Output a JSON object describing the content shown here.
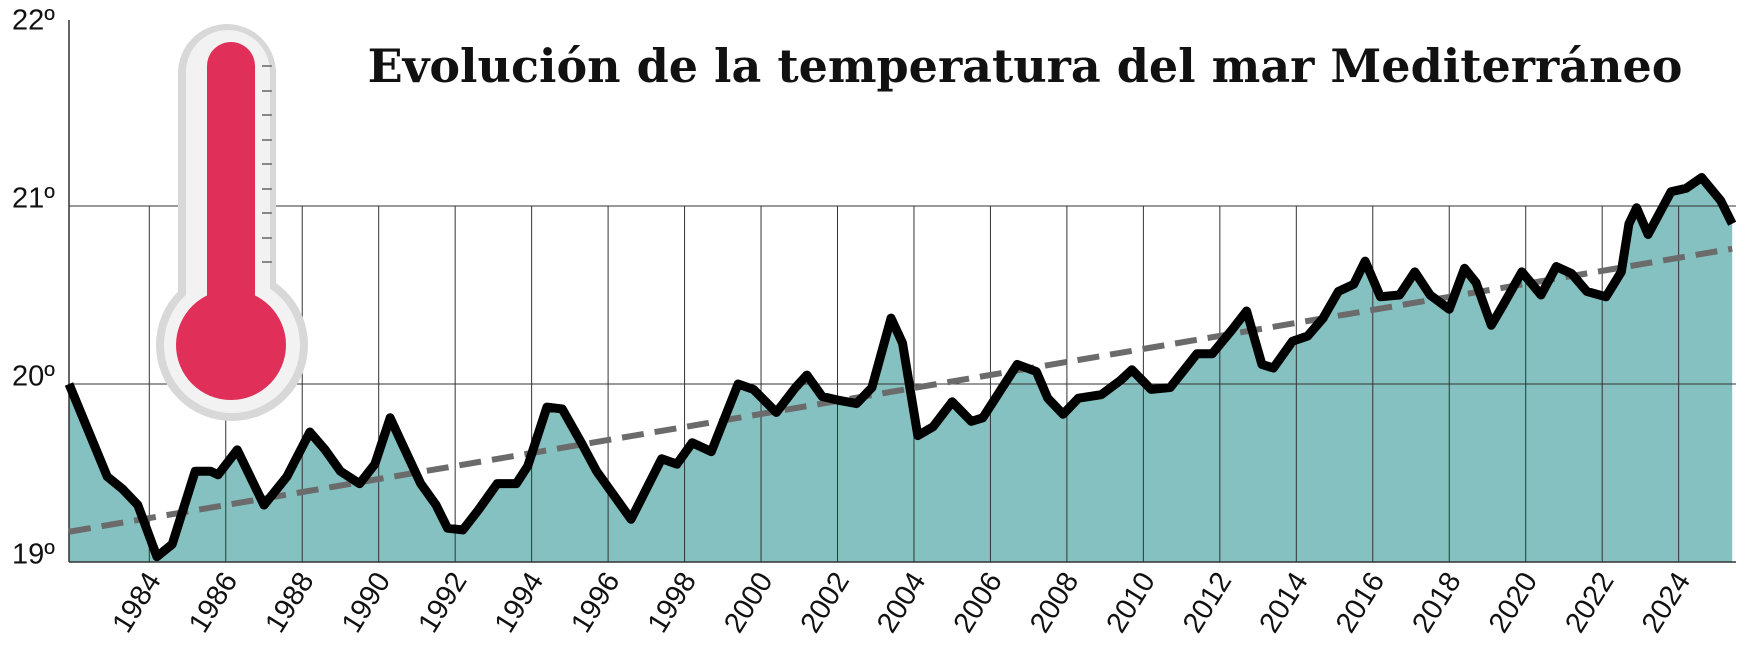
{
  "chart_data": {
    "type": "line",
    "title": "Evolución de la temperatura del mar Mediterráneo",
    "xlim": [
      1981.9,
      2025.5
    ],
    "ylim": [
      19,
      22
    ],
    "xticks": [
      1984,
      1986,
      1988,
      1990,
      1992,
      1994,
      1996,
      1998,
      2000,
      2002,
      2004,
      2006,
      2008,
      2010,
      2012,
      2014,
      2016,
      2018,
      2020,
      2022,
      2024
    ],
    "yticks": [
      {
        "value": 19,
        "label": "19º"
      },
      {
        "value": 20,
        "label": "20º"
      },
      {
        "value": 21,
        "label": "21º"
      },
      {
        "value": 22,
        "label": "22º"
      }
    ],
    "grid": true,
    "color": "#000000",
    "area_color": "#84c1c0",
    "x": [
      1981.9,
      1982.9,
      1983.3,
      1983.7,
      1984.2,
      1984.6,
      1985.2,
      1985.6,
      1985.8,
      1986.3,
      1987.0,
      1987.6,
      1988.2,
      1988.6,
      1989.0,
      1989.5,
      1989.9,
      1990.3,
      1990.6,
      1991.1,
      1991.5,
      1991.8,
      1992.2,
      1992.6,
      1993.1,
      1993.6,
      1993.9,
      1994.4,
      1994.8,
      1995.3,
      1995.7,
      1996.1,
      1996.6,
      1997.4,
      1997.8,
      1998.2,
      1998.7,
      1999.4,
      1999.8,
      2000.4,
      2000.9,
      2001.2,
      2001.6,
      2002.0,
      2002.5,
      2002.9,
      2003.4,
      2003.7,
      2004.1,
      2004.5,
      2005.0,
      2005.5,
      2005.8,
      2006.7,
      2007.2,
      2007.5,
      2007.9,
      2008.3,
      2008.9,
      2009.4,
      2009.7,
      2010.2,
      2010.7,
      2011.4,
      2011.8,
      2012.3,
      2012.7,
      2013.1,
      2013.4,
      2013.9,
      2014.3,
      2014.7,
      2015.1,
      2015.5,
      2015.8,
      2016.2,
      2016.7,
      2017.1,
      2017.5,
      2018.0,
      2018.4,
      2018.7,
      2019.1,
      2019.4,
      2019.9,
      2020.4,
      2020.8,
      2021.2,
      2021.6,
      2022.1,
      2022.5,
      2022.7,
      2022.9,
      2023.2,
      2023.8,
      2024.2,
      2024.6,
      2025.1,
      2025.4
    ],
    "values": [
      20.0,
      19.48,
      19.41,
      19.32,
      19.03,
      19.1,
      19.51,
      19.51,
      19.49,
      19.63,
      19.32,
      19.48,
      19.73,
      19.63,
      19.51,
      19.44,
      19.55,
      19.81,
      19.67,
      19.44,
      19.32,
      19.19,
      19.18,
      19.29,
      19.44,
      19.44,
      19.54,
      19.87,
      19.86,
      19.67,
      19.51,
      19.39,
      19.24,
      19.58,
      19.55,
      19.67,
      19.62,
      20.0,
      19.97,
      19.84,
      19.98,
      20.05,
      19.93,
      19.91,
      19.89,
      19.98,
      20.37,
      20.23,
      19.71,
      19.76,
      19.9,
      19.79,
      19.81,
      20.11,
      20.07,
      19.92,
      19.83,
      19.92,
      19.94,
      20.02,
      20.08,
      19.97,
      19.98,
      20.17,
      20.17,
      20.3,
      20.41,
      20.11,
      20.09,
      20.24,
      20.27,
      20.37,
      20.52,
      20.56,
      20.69,
      20.49,
      20.5,
      20.63,
      20.5,
      20.42,
      20.65,
      20.57,
      20.33,
      20.44,
      20.63,
      20.5,
      20.66,
      20.62,
      20.52,
      20.49,
      20.63,
      20.9,
      20.99,
      20.84,
      21.08,
      21.1,
      21.16,
      21.03,
      20.9
    ],
    "trend": {
      "x": [
        1981.9,
        2025.4
      ],
      "values": [
        19.17,
        20.76
      ],
      "color": "#6b6b6b"
    }
  }
}
